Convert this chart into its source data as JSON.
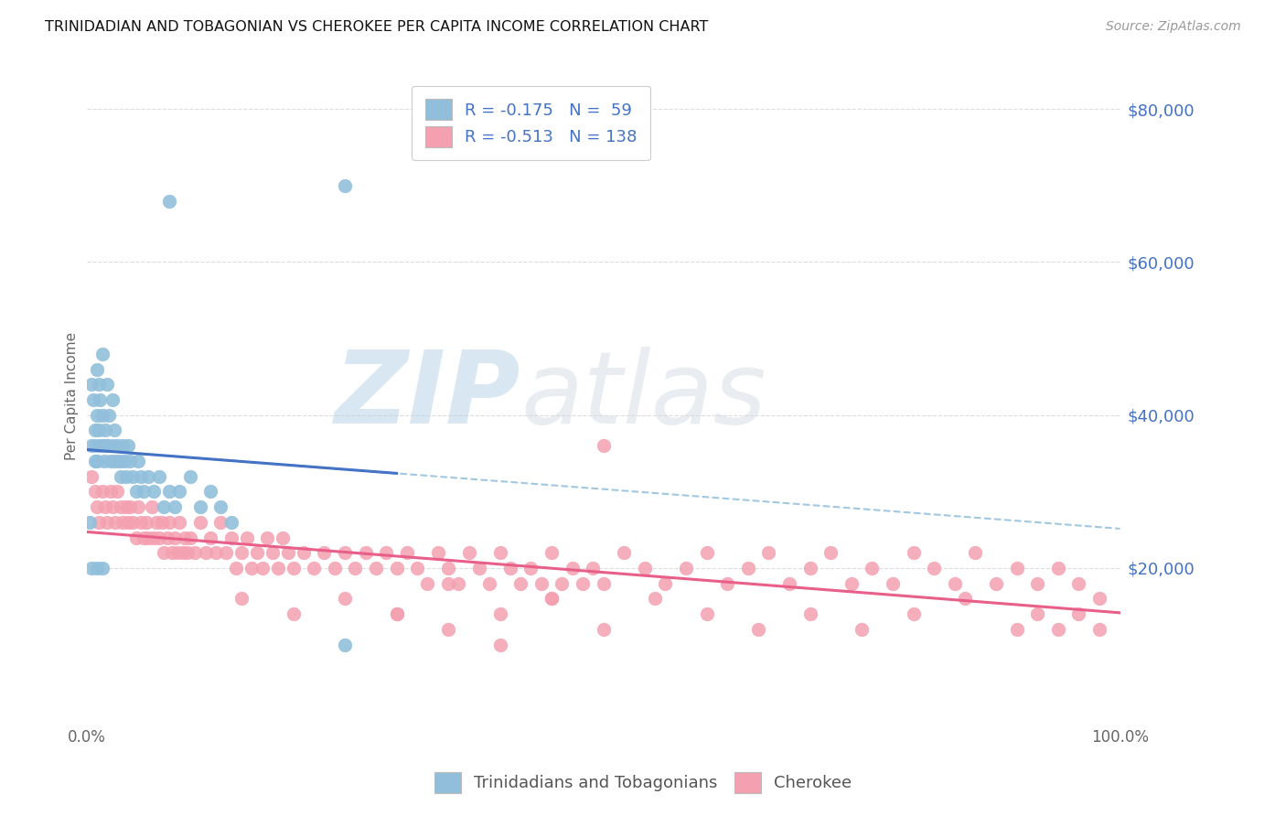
{
  "title": "TRINIDADIAN AND TOBAGONIAN VS CHEROKEE PER CAPITA INCOME CORRELATION CHART",
  "source": "Source: ZipAtlas.com",
  "ylabel": "Per Capita Income",
  "xlim": [
    0,
    1
  ],
  "ylim": [
    0,
    85000
  ],
  "blue_R": "-0.175",
  "blue_N": "59",
  "pink_R": "-0.513",
  "pink_N": "138",
  "blue_color": "#91BFDB",
  "pink_color": "#F4A0B0",
  "blue_line_color": "#4472C4",
  "pink_line_color": "#E8608A",
  "dashed_line_color": "#91BFDB",
  "label_color": "#4472C4",
  "legend_label_blue": "Trinidadians and Tobagonians",
  "legend_label_pink": "Cherokee",
  "watermark_zip": "ZIP",
  "watermark_atlas": "atlas",
  "blue_scatter_x": [
    0.003,
    0.005,
    0.005,
    0.007,
    0.008,
    0.008,
    0.009,
    0.01,
    0.01,
    0.01,
    0.012,
    0.012,
    0.013,
    0.014,
    0.015,
    0.015,
    0.016,
    0.017,
    0.018,
    0.019,
    0.02,
    0.02,
    0.022,
    0.023,
    0.025,
    0.025,
    0.027,
    0.028,
    0.03,
    0.032,
    0.033,
    0.035,
    0.037,
    0.038,
    0.04,
    0.042,
    0.045,
    0.048,
    0.05,
    0.053,
    0.055,
    0.06,
    0.065,
    0.07,
    0.075,
    0.08,
    0.085,
    0.09,
    0.1,
    0.11,
    0.12,
    0.13,
    0.14,
    0.005,
    0.01,
    0.015,
    0.08,
    0.25,
    0.25
  ],
  "blue_scatter_y": [
    26000,
    44000,
    36000,
    42000,
    38000,
    34000,
    36000,
    46000,
    40000,
    34000,
    44000,
    38000,
    42000,
    36000,
    48000,
    40000,
    36000,
    34000,
    38000,
    36000,
    44000,
    36000,
    40000,
    34000,
    42000,
    36000,
    38000,
    34000,
    36000,
    34000,
    32000,
    36000,
    34000,
    32000,
    36000,
    34000,
    32000,
    30000,
    34000,
    32000,
    30000,
    32000,
    30000,
    32000,
    28000,
    30000,
    28000,
    30000,
    32000,
    28000,
    30000,
    28000,
    26000,
    20000,
    20000,
    20000,
    68000,
    70000,
    10000
  ],
  "pink_scatter_x": [
    0.005,
    0.008,
    0.01,
    0.012,
    0.015,
    0.018,
    0.02,
    0.023,
    0.025,
    0.028,
    0.03,
    0.033,
    0.035,
    0.038,
    0.04,
    0.042,
    0.045,
    0.048,
    0.05,
    0.053,
    0.055,
    0.058,
    0.06,
    0.063,
    0.065,
    0.068,
    0.07,
    0.073,
    0.075,
    0.078,
    0.08,
    0.083,
    0.085,
    0.088,
    0.09,
    0.093,
    0.095,
    0.098,
    0.1,
    0.105,
    0.11,
    0.115,
    0.12,
    0.125,
    0.13,
    0.135,
    0.14,
    0.145,
    0.15,
    0.155,
    0.16,
    0.165,
    0.17,
    0.175,
    0.18,
    0.185,
    0.19,
    0.195,
    0.2,
    0.21,
    0.22,
    0.23,
    0.24,
    0.25,
    0.26,
    0.27,
    0.28,
    0.29,
    0.3,
    0.31,
    0.32,
    0.33,
    0.34,
    0.35,
    0.36,
    0.37,
    0.38,
    0.39,
    0.4,
    0.41,
    0.42,
    0.43,
    0.44,
    0.45,
    0.46,
    0.47,
    0.48,
    0.49,
    0.5,
    0.52,
    0.54,
    0.56,
    0.58,
    0.6,
    0.62,
    0.64,
    0.66,
    0.68,
    0.7,
    0.72,
    0.74,
    0.76,
    0.78,
    0.8,
    0.82,
    0.84,
    0.86,
    0.88,
    0.9,
    0.92,
    0.94,
    0.96,
    0.98,
    0.15,
    0.2,
    0.25,
    0.3,
    0.35,
    0.4,
    0.45,
    0.5,
    0.55,
    0.6,
    0.65,
    0.7,
    0.75,
    0.8,
    0.85,
    0.9,
    0.92,
    0.94,
    0.96,
    0.98,
    0.3,
    0.35,
    0.4,
    0.45,
    0.5
  ],
  "pink_scatter_y": [
    32000,
    30000,
    28000,
    26000,
    30000,
    28000,
    26000,
    30000,
    28000,
    26000,
    30000,
    28000,
    26000,
    28000,
    26000,
    28000,
    26000,
    24000,
    28000,
    26000,
    24000,
    26000,
    24000,
    28000,
    24000,
    26000,
    24000,
    26000,
    22000,
    24000,
    26000,
    22000,
    24000,
    22000,
    26000,
    22000,
    24000,
    22000,
    24000,
    22000,
    26000,
    22000,
    24000,
    22000,
    26000,
    22000,
    24000,
    20000,
    22000,
    24000,
    20000,
    22000,
    20000,
    24000,
    22000,
    20000,
    24000,
    22000,
    20000,
    22000,
    20000,
    22000,
    20000,
    22000,
    20000,
    22000,
    20000,
    22000,
    20000,
    22000,
    20000,
    18000,
    22000,
    20000,
    18000,
    22000,
    20000,
    18000,
    22000,
    20000,
    18000,
    20000,
    18000,
    22000,
    18000,
    20000,
    18000,
    20000,
    18000,
    22000,
    20000,
    18000,
    20000,
    22000,
    18000,
    20000,
    22000,
    18000,
    20000,
    22000,
    18000,
    20000,
    18000,
    22000,
    20000,
    18000,
    22000,
    18000,
    20000,
    18000,
    20000,
    18000,
    16000,
    16000,
    14000,
    16000,
    14000,
    18000,
    14000,
    16000,
    12000,
    16000,
    14000,
    12000,
    14000,
    12000,
    14000,
    16000,
    12000,
    14000,
    12000,
    14000,
    12000,
    14000,
    12000,
    10000,
    16000,
    36000
  ]
}
